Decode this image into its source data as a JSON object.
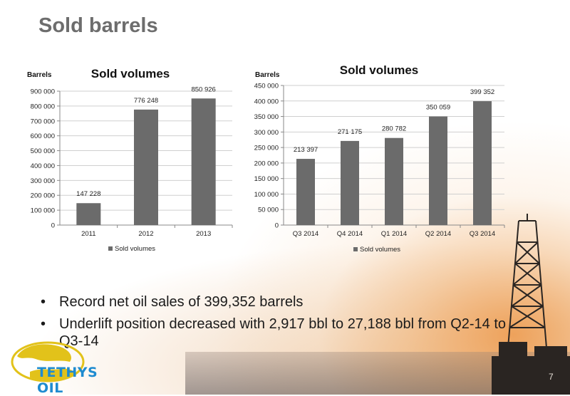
{
  "slide": {
    "title": "Sold barrels",
    "page_number": "7"
  },
  "bullets": [
    "Record net oil sales of 399,352 barrels",
    "Underlift position decreased with 2,917 bbl to 27,188 bbl from Q2-14 to Q3-14"
  ],
  "logo": {
    "text": "TETHYS OIL"
  },
  "colors": {
    "bar": "#6b6b6b",
    "axis": "#888888",
    "grid": "#cfcfcf",
    "title_text": "#6d6d6d"
  },
  "chart_data": [
    {
      "type": "bar",
      "title": "Sold volumes",
      "ylabel": "Barrels",
      "xlabel": "",
      "categories": [
        "2011",
        "2012",
        "2013"
      ],
      "series": [
        {
          "name": "Sold volumes",
          "values": [
            147228,
            776248,
            850926
          ]
        }
      ],
      "data_labels": [
        "147 228",
        "776 248",
        "850 926"
      ],
      "ylim": [
        0,
        900000
      ],
      "yticks": [
        0,
        100000,
        200000,
        300000,
        400000,
        500000,
        600000,
        700000,
        800000,
        900000
      ],
      "ytick_labels": [
        "0",
        "100 000",
        "200 000",
        "300 000",
        "400 000",
        "500 000",
        "600 000",
        "700 000",
        "800 000",
        "900 000"
      ],
      "grid": true,
      "legend": "bottom-left"
    },
    {
      "type": "bar",
      "title": "Sold volumes",
      "ylabel": "Barrels",
      "xlabel": "",
      "categories": [
        "Q3 2014",
        "Q4 2014",
        "Q1 2014",
        "Q2 2014",
        "Q3 2014"
      ],
      "series": [
        {
          "name": "Sold volumes",
          "values": [
            213397,
            271175,
            280782,
            350059,
            399352
          ]
        }
      ],
      "data_labels": [
        "213 397",
        "271 175",
        "280 782",
        "350 059",
        "399 352"
      ],
      "ylim": [
        0,
        450000
      ],
      "yticks": [
        0,
        50000,
        100000,
        150000,
        200000,
        250000,
        300000,
        350000,
        400000,
        450000
      ],
      "ytick_labels": [
        "0",
        "50 000",
        "100 000",
        "150 000",
        "200 000",
        "250 000",
        "300 000",
        "350 000",
        "400 000",
        "450 000"
      ],
      "grid": true,
      "legend": "bottom-left"
    }
  ]
}
